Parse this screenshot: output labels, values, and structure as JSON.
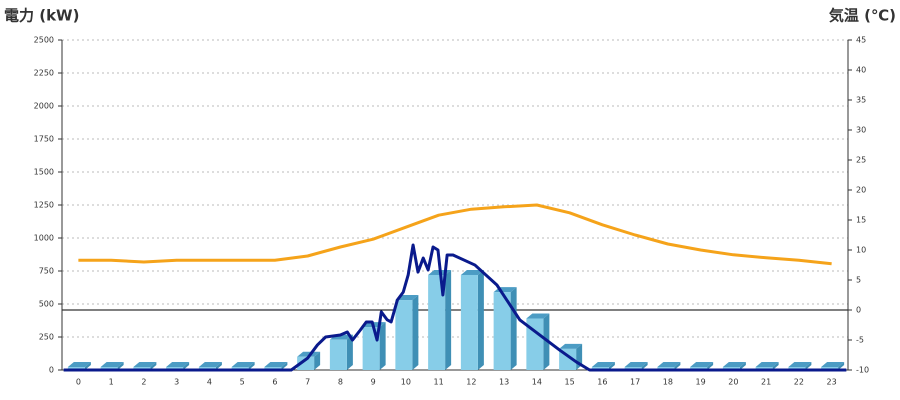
{
  "chart_data": {
    "type": "bar",
    "y_label": "電力 (kW)",
    "y_label_color": "#1a6fb4",
    "y2_label": "気温 (℃)",
    "y2_label_color": "#f08c1c",
    "categories": [
      "0",
      "1",
      "2",
      "3",
      "4",
      "5",
      "6",
      "7",
      "8",
      "9",
      "10",
      "11",
      "12",
      "13",
      "14",
      "15",
      "16",
      "17",
      "18",
      "19",
      "20",
      "21",
      "22",
      "23"
    ],
    "ylim": [
      0,
      2500
    ],
    "yticks": [
      0,
      250,
      500,
      750,
      1000,
      1250,
      1500,
      1750,
      2000,
      2250,
      2500
    ],
    "y2lim": [
      -10,
      45
    ],
    "y2ticks": [
      -10,
      -5,
      0,
      5,
      10,
      15,
      20,
      25,
      30,
      35,
      40,
      45
    ],
    "grid": true,
    "series": [
      {
        "type": "bar",
        "color": "#87cde8",
        "values": [
          0,
          0,
          0,
          0,
          0,
          0,
          0,
          100,
          230,
          325,
          530,
          720,
          720,
          590,
          390,
          160,
          0,
          0,
          0,
          0,
          0,
          0,
          0,
          0
        ]
      },
      {
        "type": "line",
        "color": "#0a1a8c",
        "x": [
          -0.45,
          6.5,
          7.0,
          7.3,
          7.55,
          8.0,
          8.21,
          8.37,
          8.61,
          8.79,
          8.97,
          9.12,
          9.25,
          9.43,
          9.55,
          9.74,
          9.92,
          10.07,
          10.22,
          10.37,
          10.53,
          10.68,
          10.83,
          10.98,
          11.13,
          11.26,
          11.44,
          12.11,
          12.78,
          13.48,
          14.09,
          14.69,
          15.21,
          15.61,
          23.45
        ],
        "values": [
          0,
          0,
          90,
          190,
          250,
          265,
          288,
          227,
          303,
          364,
          364,
          227,
          440,
          380,
          364,
          530,
          590,
          720,
          947,
          742,
          848,
          758,
          932,
          909,
          568,
          871,
          871,
          795,
          644,
          379,
          265,
          152,
          60,
          0,
          0
        ]
      },
      {
        "type": "line",
        "axis": "y2",
        "color": "#f5a31a",
        "values": [
          8.3,
          8.3,
          8.0,
          8.3,
          8.3,
          8.3,
          8.3,
          9.0,
          10.5,
          11.8,
          13.8,
          15.8,
          16.8,
          17.2,
          17.5,
          16.2,
          14.2,
          12.5,
          11.0,
          10.0,
          9.2,
          8.7,
          8.3,
          7.7
        ]
      }
    ]
  }
}
